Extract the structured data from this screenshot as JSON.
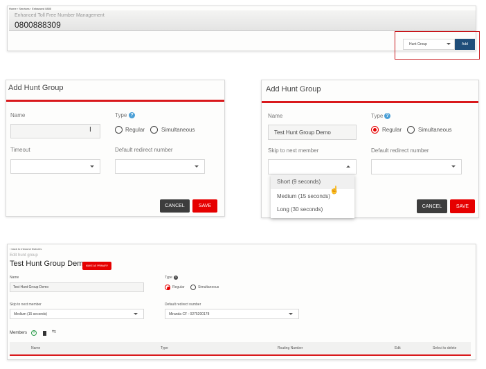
{
  "top_panel": {
    "breadcrumb": "Home › Services › Enhanced 0800",
    "header_label": "Enhanced Toll Free Number Management",
    "number": "0800888309",
    "feature_select": "Hunt Group",
    "add_label": "Add"
  },
  "dialog_empty": {
    "title": "Add Hunt Group",
    "name_label": "Name",
    "name_value": "",
    "type_label": "Type",
    "type_options": [
      "Regular",
      "Simultaneous"
    ],
    "timeout_label": "Timeout",
    "default_label": "Default redirect number",
    "cancel": "CANCEL",
    "save": "SAVE"
  },
  "dialog_filled": {
    "title": "Add Hunt Group",
    "name_label": "Name",
    "name_value": "Test Hunt Group Demo",
    "type_label": "Type",
    "type_options": [
      "Regular",
      "Simultaneous"
    ],
    "type_selected": "Regular",
    "skip_label": "Skip to next member",
    "default_label": "Default redirect number",
    "dropdown_options": [
      "Short (9 seconds)",
      "Medium (15 seconds)",
      "Long (30 seconds)"
    ],
    "cancel": "CANCEL",
    "save": "SAVE"
  },
  "edit_panel": {
    "back_link": "‹ back to inbound features",
    "subtitle": "Edit hunt group",
    "title": "Test Hunt Group Demo",
    "primary_button": "MAKE AS PRIMARY",
    "name_label": "Name",
    "name_value": "Test Hunt Group Demo",
    "type_label": "Type",
    "type_options": [
      "Regular",
      "Simultaneous"
    ],
    "type_selected": "Regular",
    "skip_label": "Skip to next member",
    "skip_value": "Medium (15 seconds)",
    "default_label": "Default redirect number",
    "default_value": "Miranda CF - 0275200178",
    "members_label": "Members",
    "columns": [
      "Name",
      "Type",
      "Routing Number",
      "Edit",
      "Select to delete"
    ]
  },
  "colors": {
    "accent_red": "#e60000",
    "add_blue": "#1f4e7a",
    "cancel_dark": "#3d3d3d"
  }
}
